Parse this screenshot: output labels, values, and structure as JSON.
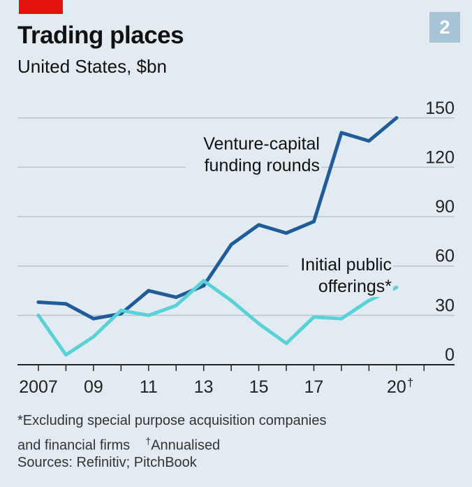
{
  "header": {
    "badge": "2",
    "title": "Trading places",
    "subtitle": "United States, $bn"
  },
  "colors": {
    "background": "#e3ebf2",
    "brand_red": "#e3120b",
    "badge": "#a7c3d6",
    "venture": "#1f5c99",
    "ipo": "#5ad1d6",
    "grid": "#b7c4cf"
  },
  "footnotes": {
    "note_line1": "*Excluding special purpose acquisition companies",
    "note_line2_a": "and financial firms",
    "dagger": "†",
    "note_line2_b": "Annualised",
    "source": "Sources: Refinitiv; PitchBook"
  },
  "chart_data": {
    "type": "line",
    "title": "Trading places",
    "subtitle": "United States, $bn",
    "x": [
      2007,
      2008,
      2009,
      2010,
      2011,
      2012,
      2013,
      2014,
      2015,
      2016,
      2017,
      2018,
      2019,
      2020
    ],
    "x_ticks": [
      2007,
      2009,
      2011,
      2013,
      2015,
      2017,
      2020
    ],
    "x_tick_labels": [
      "2007",
      "09",
      "11",
      "13",
      "15",
      "17",
      "20"
    ],
    "x_tick_dagger": "†",
    "xlim": [
      2007,
      2021.6
    ],
    "ylim": [
      0,
      150
    ],
    "y_ticks": [
      0,
      30,
      60,
      90,
      120,
      150
    ],
    "y_tick_labels": [
      "0",
      "30",
      "60",
      "90",
      "120",
      "150"
    ],
    "y_axis_side": "right",
    "grid": true,
    "series": [
      {
        "key": "venture",
        "label_lines": [
          "Venture-capital",
          "funding rounds"
        ],
        "values": [
          38,
          37,
          28,
          31,
          45,
          41,
          48,
          73,
          85,
          80,
          87,
          141,
          136,
          150
        ]
      },
      {
        "key": "ipo",
        "label_lines": [
          "Initial public",
          "offerings*"
        ],
        "values": [
          30,
          6,
          17,
          33,
          30,
          36,
          51,
          39,
          25,
          13,
          29,
          28,
          39,
          47
        ]
      }
    ]
  }
}
